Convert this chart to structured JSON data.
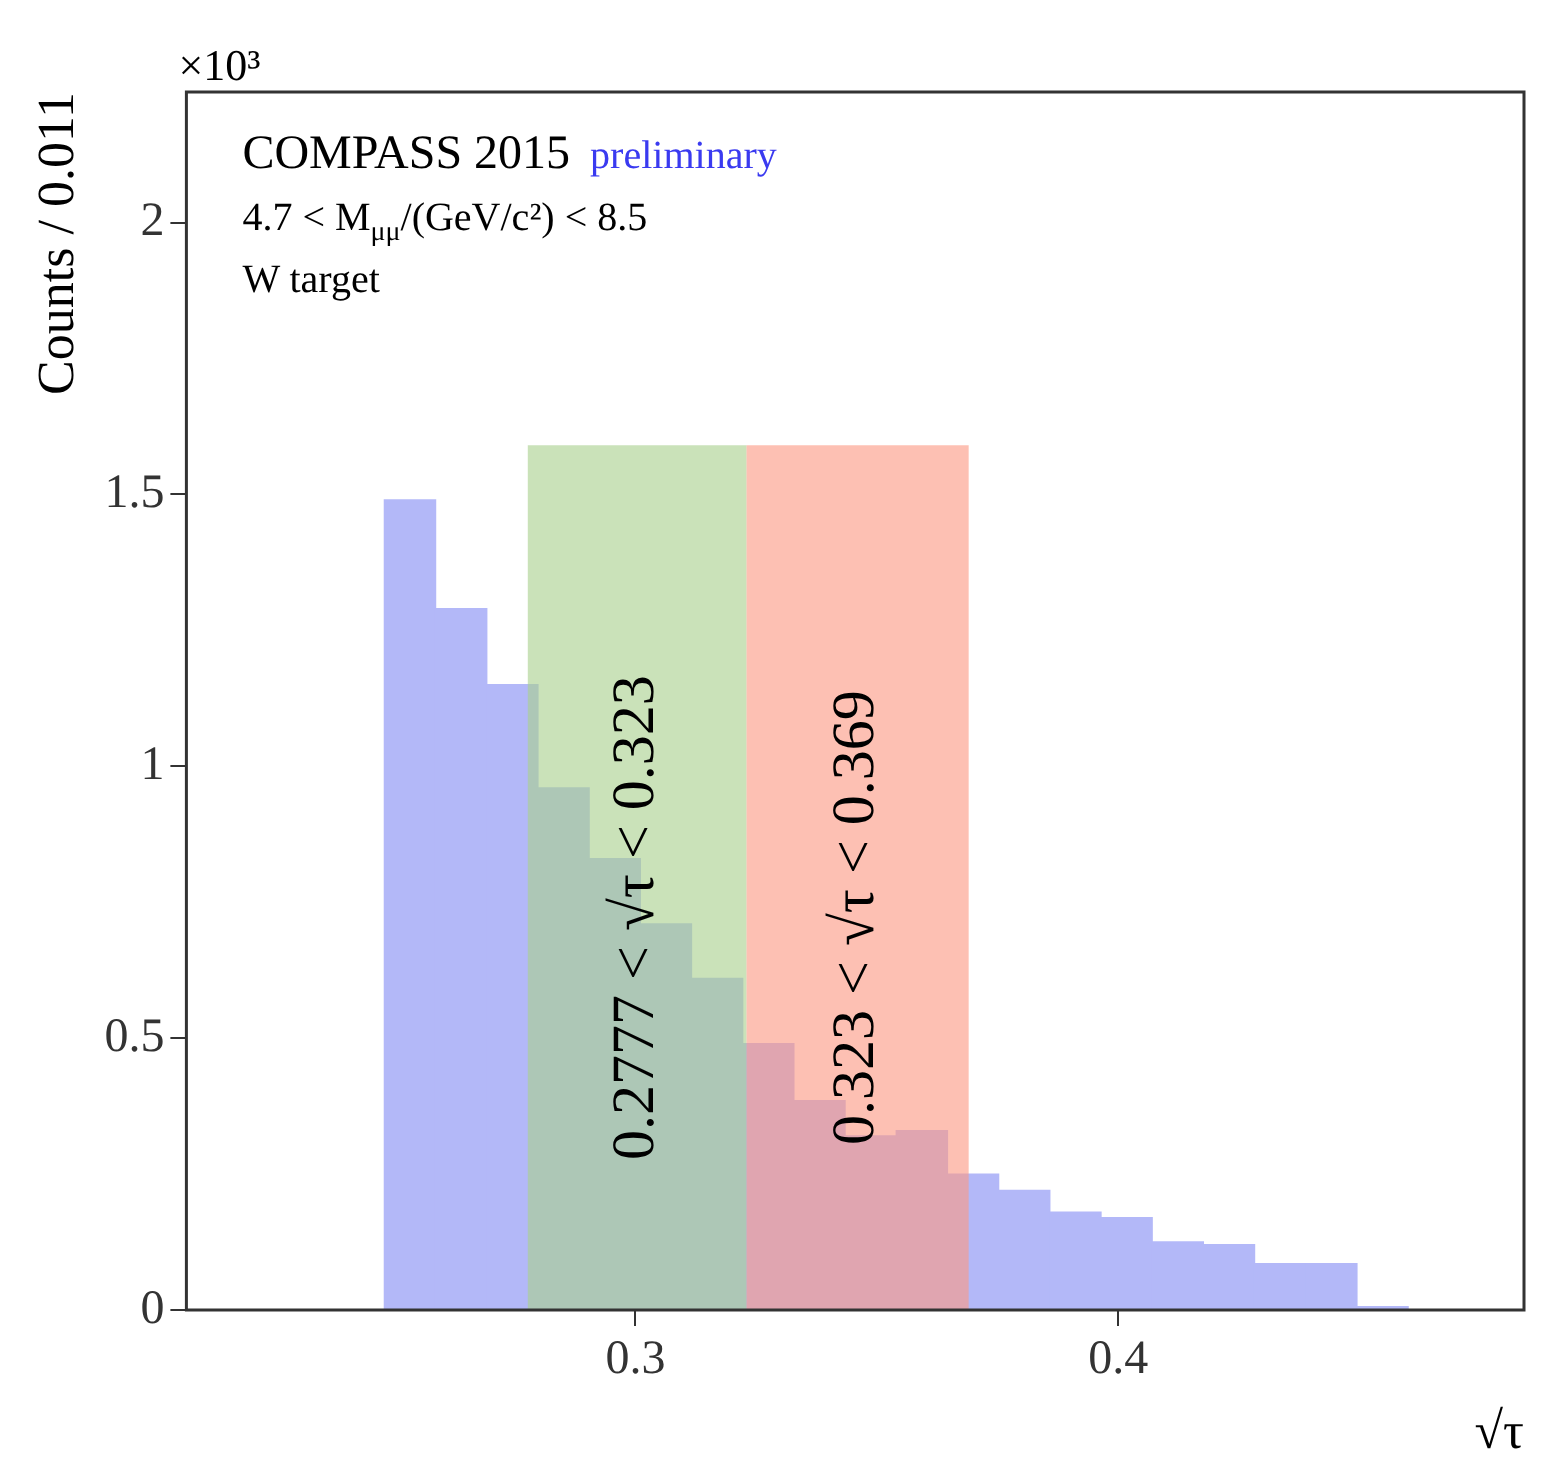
{
  "chart_data": {
    "type": "histogram",
    "ylabel": "Counts / 0.011",
    "xlabel": "√τ",
    "annotations": [
      "COMPASS 2015",
      "preliminary",
      "4.7 < M$_{μμ}$/(GeV/c²) < 8.5",
      "W target",
      "×10³"
    ],
    "bins": [
      0.248,
      0.2586,
      0.2692,
      0.2798,
      0.2904,
      0.301,
      0.3116,
      0.3222,
      0.3328,
      0.3434,
      0.354,
      0.3646,
      0.3752,
      0.3858,
      0.3964,
      0.407,
      0.4176,
      0.4282,
      0.4388,
      0.4494,
      0.46
    ],
    "values": [
      1.49,
      1.29,
      1.15,
      0.96,
      0.83,
      0.71,
      0.61,
      0.49,
      0.385,
      0.32,
      0.33,
      0.25,
      0.22,
      0.18,
      0.17,
      0.125,
      0.12,
      0.085,
      0.085,
      0.006
    ],
    "color": "#b3b8f8",
    "xlim": [
      0.207,
      0.484
    ],
    "xticks": [
      0.3,
      0.4
    ],
    "ylim": [
      0,
      2.24
    ],
    "yticks": [
      0,
      0.5,
      1,
      1.5,
      2
    ],
    "bands": [
      {
        "axis": "x",
        "from": 0.2777,
        "to": 0.323,
        "label": "0.2777 < √τ < 0.323",
        "color": "#a9d08e"
      },
      {
        "axis": "x",
        "from": 0.323,
        "to": 0.369,
        "label": "0.323 < √τ < 0.369",
        "color": "#fc9a85"
      }
    ],
    "grid": false,
    "legend": false
  }
}
